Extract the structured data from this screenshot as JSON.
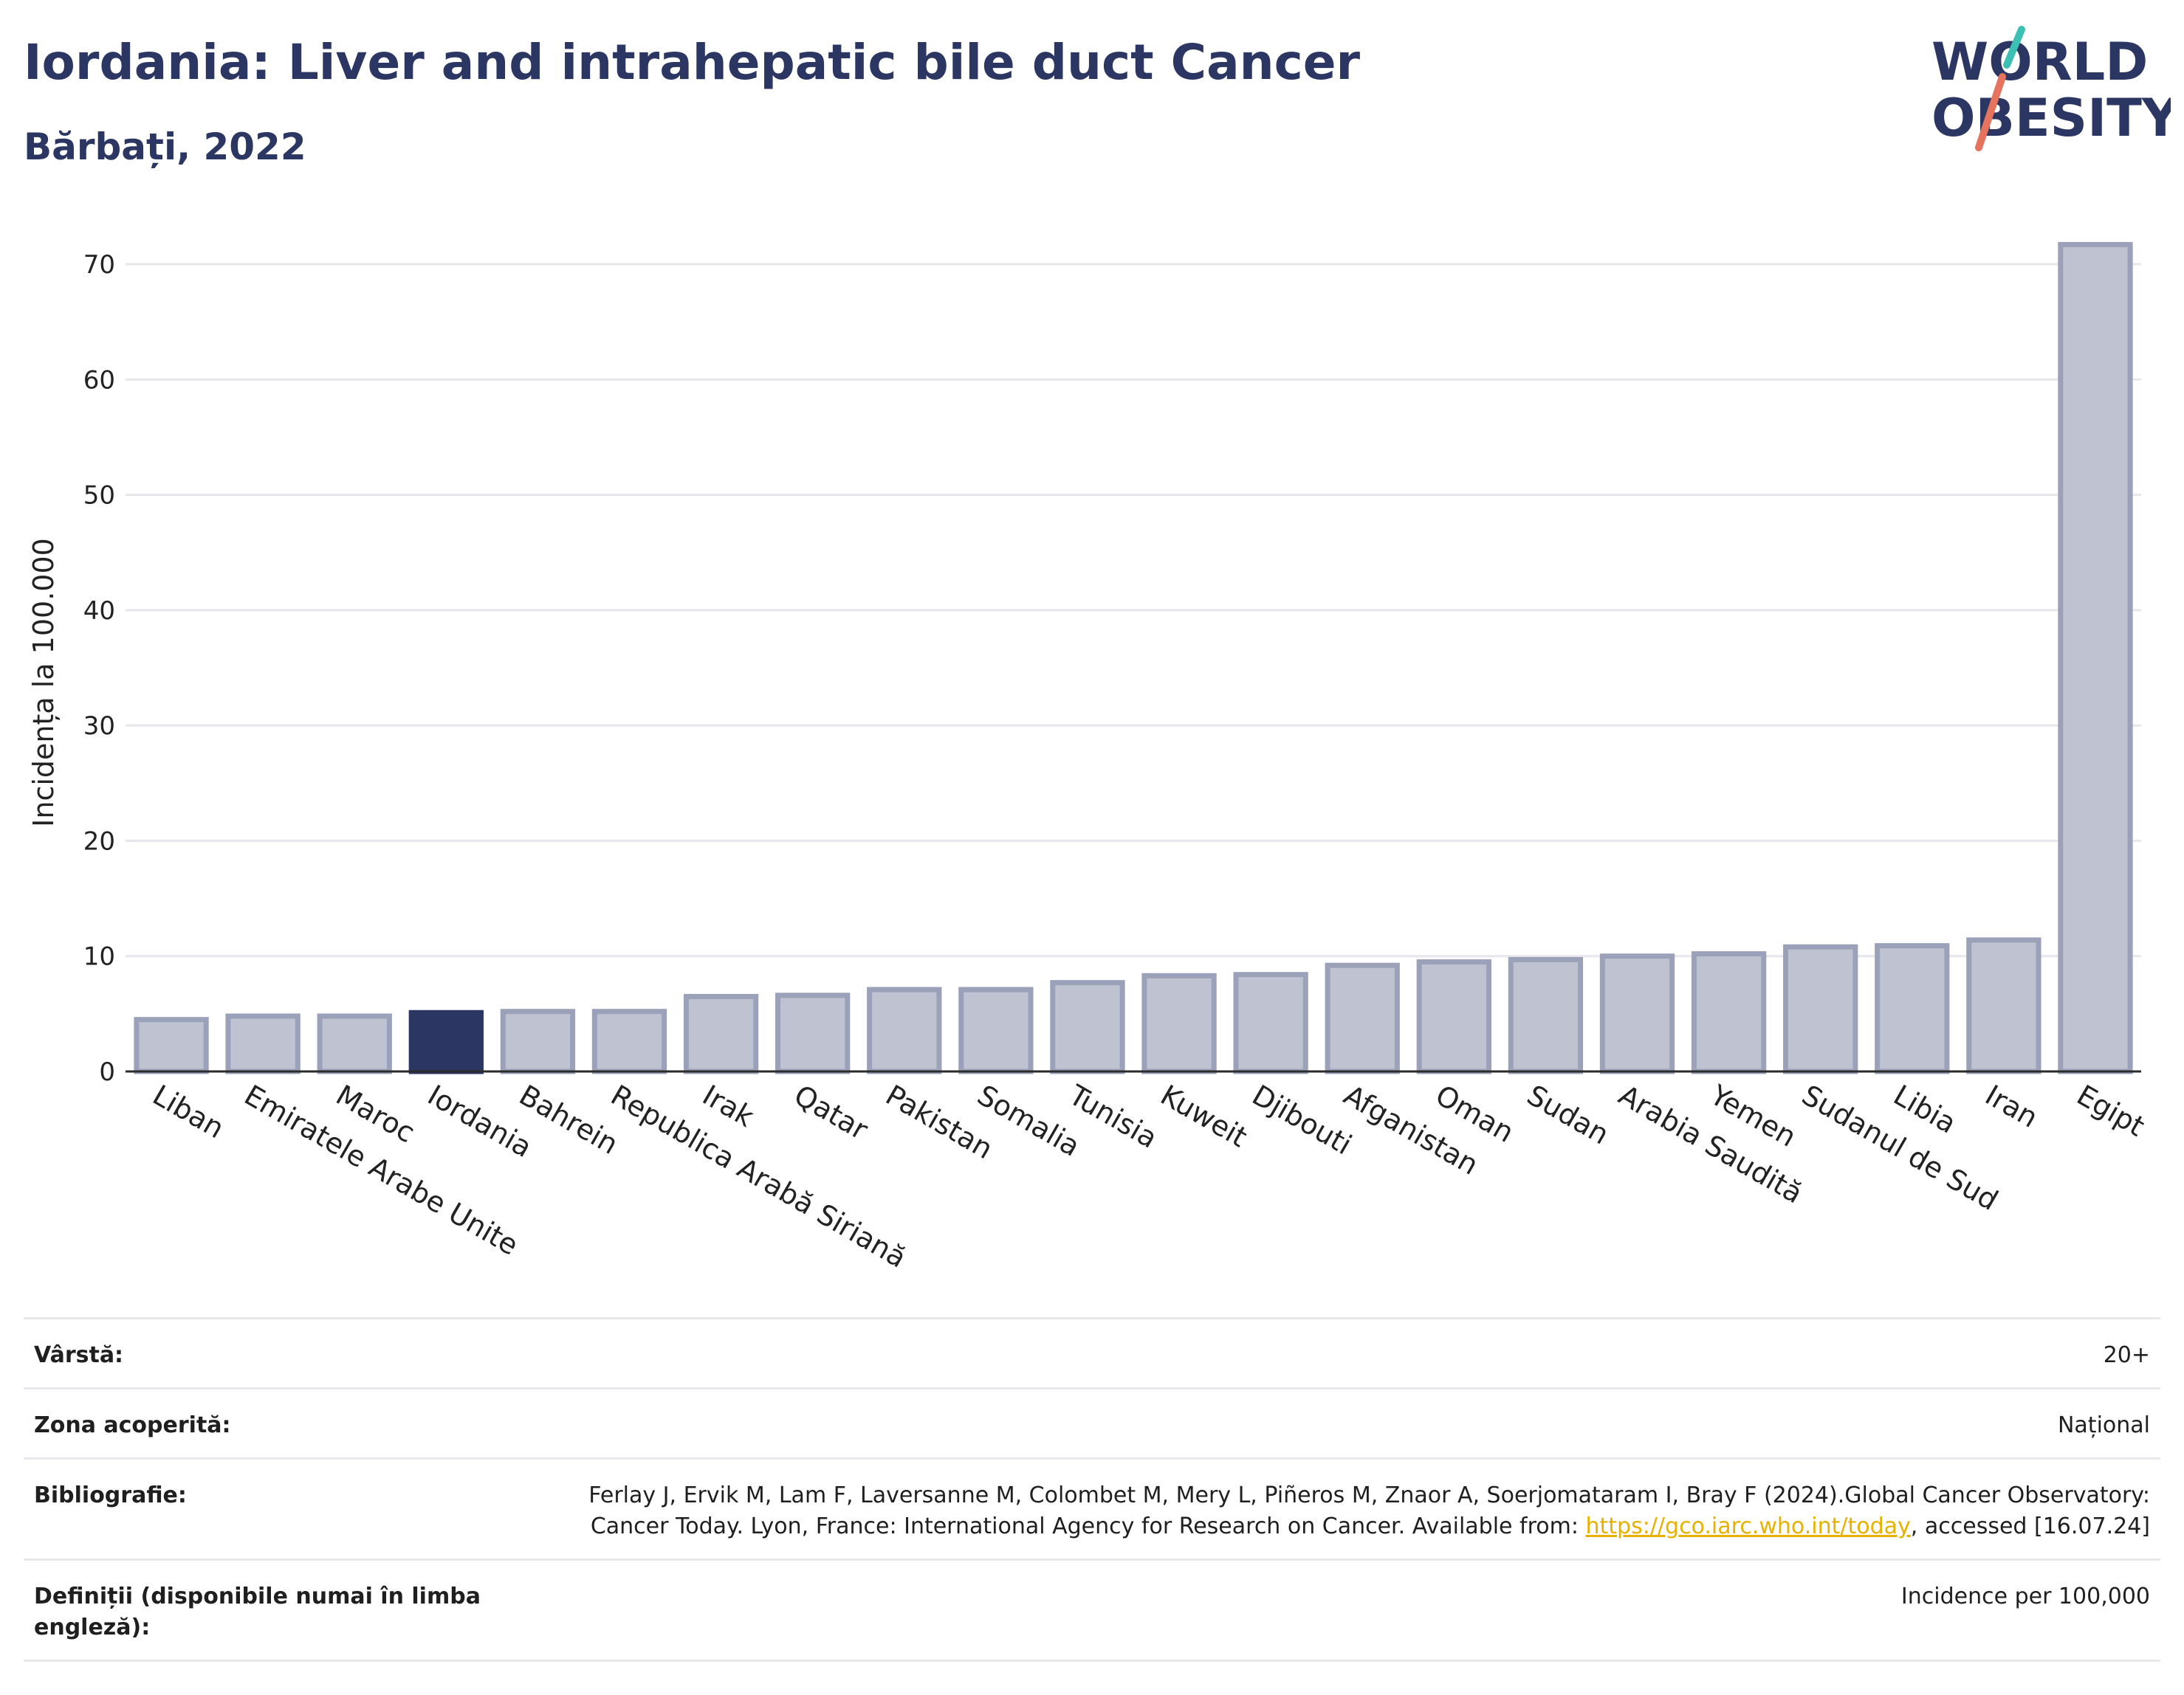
{
  "header": {
    "title": "Iordania: Liver and intrahepatic bile duct Cancer",
    "subtitle": "Bărbați, 2022"
  },
  "logo": {
    "line1": "WORLD",
    "line2": "OBESITY",
    "colors": {
      "text": "#2b3663",
      "accent1": "#e5735e",
      "accent2": "#3cc0b4"
    }
  },
  "chart_data": {
    "type": "bar",
    "title": "",
    "xlabel": "",
    "ylabel": "Incidența la 100.000",
    "ylim": [
      0,
      75
    ],
    "yticks": [
      0,
      10,
      20,
      30,
      40,
      50,
      60,
      70
    ],
    "grid": true,
    "highlight": "Iordania",
    "colors": {
      "bar": "#bfc3d1",
      "bar_edge": "#9aa1b9",
      "highlight": "#2b3663",
      "grid": "#e6e6ec",
      "axis": "#2b2b2b"
    },
    "categories": [
      "Liban",
      "Emiratele Arabe Unite",
      "Maroc",
      "Iordania",
      "Bahrein",
      "Republica Arabă Siriană",
      "Irak",
      "Qatar",
      "Pakistan",
      "Somalia",
      "Tunisia",
      "Kuweit",
      "Djibouti",
      "Afganistan",
      "Oman",
      "Sudan",
      "Arabia Saudită",
      "Yemen",
      "Sudanul de Sud",
      "Libia",
      "Iran",
      "Egipt"
    ],
    "values": [
      4.5,
      4.8,
      4.8,
      5.1,
      5.2,
      5.2,
      6.5,
      6.6,
      7.1,
      7.1,
      7.7,
      8.3,
      8.4,
      9.2,
      9.5,
      9.7,
      10.0,
      10.2,
      10.8,
      10.9,
      11.4,
      71.7
    ]
  },
  "meta": {
    "rows": [
      {
        "key": "Vârstă:",
        "value": "20+"
      },
      {
        "key": "Zona acoperită:",
        "value": "Național"
      },
      {
        "key": "Bibliografie:",
        "value_pre": "Ferlay J, Ervik M, Lam F, Laversanne M, Colombet M, Mery L, Piñeros M, Znaor A, Soerjomataram I, Bray F (2024).Global Cancer Observatory: Cancer Today. Lyon, France: International Agency for Research on Cancer. Available from: ",
        "link": "https://gco.iarc.who.int/today",
        "value_post": ", accessed [16.07.24]"
      },
      {
        "key": "Definiții (disponibile numai în limba engleză):",
        "value": "Incidence per 100,000"
      }
    ]
  }
}
